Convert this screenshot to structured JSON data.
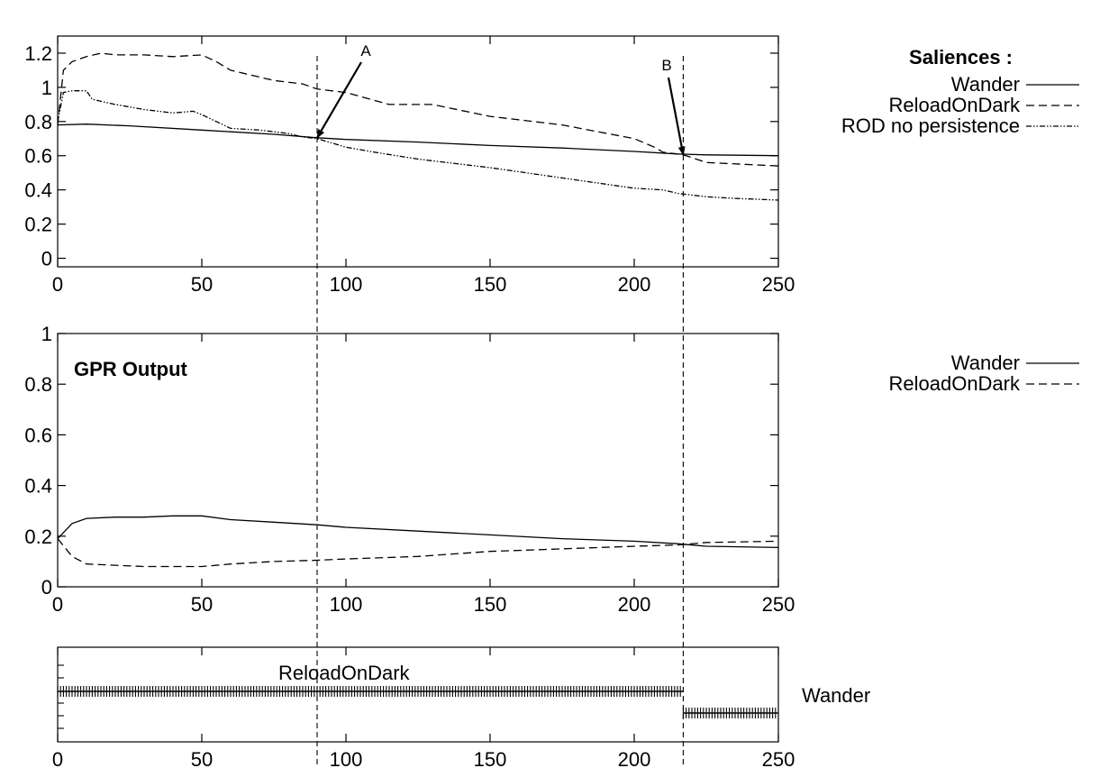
{
  "chart_data": [
    {
      "type": "line",
      "title": "",
      "xlabel": "",
      "ylabel": "",
      "xlim": [
        0,
        250
      ],
      "ylim": [
        -0.05,
        1.3
      ],
      "xticks": [
        0,
        50,
        100,
        150,
        200,
        250
      ],
      "yticks": [
        0,
        0.2,
        0.4,
        0.6,
        0.8,
        1,
        1.2
      ],
      "xtick_labels": [
        "0",
        "50",
        "100",
        "150",
        "200",
        "250"
      ],
      "ytick_labels": [
        "0",
        "0.2",
        "0.4",
        "0.6",
        "0.8",
        "1",
        "1.2"
      ],
      "legend": {
        "title": "Saliences :",
        "placement": "right"
      },
      "series": [
        {
          "name": "Wander",
          "style": "solid",
          "points": [
            [
              0,
              0.78
            ],
            [
              10,
              0.785
            ],
            [
              25,
              0.775
            ],
            [
              50,
              0.75
            ],
            [
              75,
              0.725
            ],
            [
              90,
              0.705
            ],
            [
              100,
              0.695
            ],
            [
              125,
              0.68
            ],
            [
              150,
              0.66
            ],
            [
              175,
              0.645
            ],
            [
              200,
              0.625
            ],
            [
              215,
              0.61
            ],
            [
              225,
              0.605
            ],
            [
              250,
              0.6
            ]
          ]
        },
        {
          "name": "ReloadOnDark",
          "style": "dashed",
          "points": [
            [
              0,
              0.78
            ],
            [
              2,
              1.1
            ],
            [
              5,
              1.15
            ],
            [
              10,
              1.18
            ],
            [
              15,
              1.2
            ],
            [
              20,
              1.19
            ],
            [
              30,
              1.19
            ],
            [
              40,
              1.18
            ],
            [
              50,
              1.19
            ],
            [
              55,
              1.15
            ],
            [
              60,
              1.1
            ],
            [
              75,
              1.04
            ],
            [
              85,
              1.02
            ],
            [
              90,
              0.99
            ],
            [
              100,
              0.97
            ],
            [
              115,
              0.9
            ],
            [
              130,
              0.9
            ],
            [
              150,
              0.83
            ],
            [
              175,
              0.78
            ],
            [
              200,
              0.7
            ],
            [
              207,
              0.65
            ],
            [
              210,
              0.62
            ],
            [
              215,
              0.61
            ],
            [
              218,
              0.6
            ],
            [
              225,
              0.56
            ],
            [
              250,
              0.54
            ]
          ]
        },
        {
          "name": "ROD no persistence",
          "style": "dash-dot-dot",
          "points": [
            [
              0,
              0.8
            ],
            [
              2,
              0.97
            ],
            [
              5,
              0.98
            ],
            [
              10,
              0.98
            ],
            [
              12,
              0.93
            ],
            [
              20,
              0.9
            ],
            [
              30,
              0.87
            ],
            [
              40,
              0.85
            ],
            [
              47,
              0.86
            ],
            [
              50,
              0.84
            ],
            [
              55,
              0.8
            ],
            [
              60,
              0.76
            ],
            [
              70,
              0.75
            ],
            [
              80,
              0.73
            ],
            [
              85,
              0.71
            ],
            [
              90,
              0.7
            ],
            [
              100,
              0.65
            ],
            [
              110,
              0.62
            ],
            [
              125,
              0.58
            ],
            [
              150,
              0.53
            ],
            [
              175,
              0.47
            ],
            [
              200,
              0.41
            ],
            [
              210,
              0.4
            ],
            [
              215,
              0.38
            ],
            [
              225,
              0.36
            ],
            [
              235,
              0.35
            ],
            [
              250,
              0.34
            ]
          ]
        }
      ]
    },
    {
      "type": "line",
      "title": "GPR Output",
      "xlabel": "",
      "ylabel": "",
      "xlim": [
        0,
        250
      ],
      "ylim": [
        0,
        1
      ],
      "xticks": [
        0,
        50,
        100,
        150,
        200,
        250
      ],
      "yticks": [
        0,
        0.2,
        0.4,
        0.6,
        0.8,
        1
      ],
      "xtick_labels": [
        "0",
        "50",
        "100",
        "150",
        "200",
        "250"
      ],
      "ytick_labels": [
        "0",
        "0.2",
        "0.4",
        "0.6",
        "0.8",
        "1"
      ],
      "legend": {
        "placement": "right"
      },
      "series": [
        {
          "name": "Wander",
          "style": "solid",
          "points": [
            [
              0,
              0.19
            ],
            [
              5,
              0.25
            ],
            [
              10,
              0.27
            ],
            [
              20,
              0.275
            ],
            [
              30,
              0.275
            ],
            [
              40,
              0.28
            ],
            [
              50,
              0.28
            ],
            [
              60,
              0.265
            ],
            [
              75,
              0.255
            ],
            [
              90,
              0.245
            ],
            [
              100,
              0.235
            ],
            [
              125,
              0.22
            ],
            [
              150,
              0.205
            ],
            [
              175,
              0.19
            ],
            [
              200,
              0.18
            ],
            [
              215,
              0.17
            ],
            [
              225,
              0.16
            ],
            [
              250,
              0.155
            ]
          ]
        },
        {
          "name": "ReloadOnDark",
          "style": "dashed",
          "points": [
            [
              0,
              0.19
            ],
            [
              5,
              0.12
            ],
            [
              10,
              0.09
            ],
            [
              20,
              0.085
            ],
            [
              30,
              0.08
            ],
            [
              40,
              0.08
            ],
            [
              50,
              0.08
            ],
            [
              60,
              0.09
            ],
            [
              75,
              0.1
            ],
            [
              90,
              0.105
            ],
            [
              100,
              0.11
            ],
            [
              125,
              0.12
            ],
            [
              150,
              0.14
            ],
            [
              175,
              0.15
            ],
            [
              200,
              0.16
            ],
            [
              215,
              0.165
            ],
            [
              225,
              0.175
            ],
            [
              250,
              0.18
            ]
          ]
        }
      ]
    },
    {
      "type": "timeline",
      "title": "",
      "xlim": [
        0,
        250
      ],
      "xticks": [
        0,
        50,
        100,
        150,
        200,
        250
      ],
      "xtick_labels": [
        "0",
        "50",
        "100",
        "150",
        "200",
        "250"
      ],
      "segments": [
        {
          "label": "ReloadOnDark",
          "start": 0,
          "end": 217,
          "level": "upper"
        },
        {
          "label": "Wander",
          "start": 217,
          "end": 250,
          "level": "lower"
        }
      ]
    }
  ],
  "annotations": {
    "A": {
      "label": "A",
      "x": 90
    },
    "B": {
      "label": "B",
      "x": 217
    }
  }
}
